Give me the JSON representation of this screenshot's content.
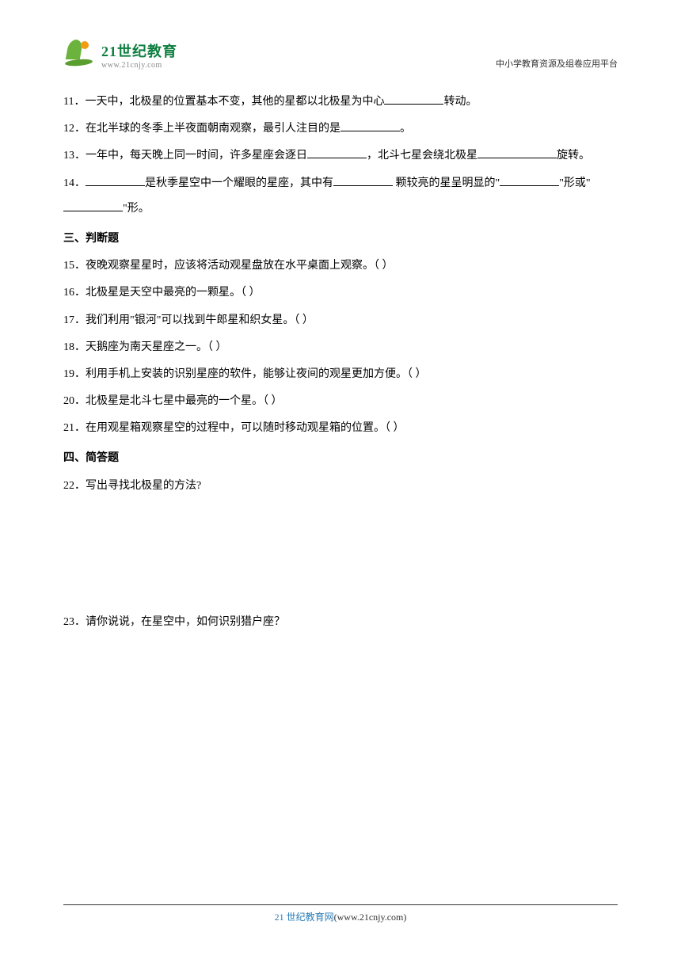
{
  "header": {
    "logo_cn": "21世纪教育",
    "logo_url": "www.21cnjy.com",
    "platform_text": "中小学教育资源及组卷应用平台"
  },
  "questions": {
    "q11": {
      "num": "11．",
      "part1": "一天中，北极星的位置基本不变，其他的星都以北极星为中心",
      "part2": "转动。"
    },
    "q12": {
      "num": "12．",
      "part1": "在北半球的冬季上半夜面朝南观察，最引人注目的是",
      "part2": "。"
    },
    "q13": {
      "num": "13．",
      "part1": "一年中，每天晚上同一时间，许多星座会逐日",
      "part2": "，北斗七星会绕北极星",
      "part3": "旋转。"
    },
    "q14": {
      "num": "14．",
      "part1": "是秋季星空中一个耀眼的星座，其中有",
      "part2": " 颗较亮的星呈明显的\"",
      "part3": "\"形或\"",
      "part4": "\"形。"
    }
  },
  "section3": {
    "title": "三、判断题",
    "q15": "15．夜晚观察星星时，应该将活动观星盘放在水平桌面上观察。（       ）",
    "q16": "16．北极星是天空中最亮的一颗星。（       ）",
    "q17": "17．我们利用\"银河\"可以找到牛郎星和织女星。（       ）",
    "q18": "18．天鹅座为南天星座之一。（       ）",
    "q19": "19．利用手机上安装的识别星座的软件，能够让夜间的观星更加方便。（       ）",
    "q20": "20．北极星是北斗七星中最亮的一个星。（       ）",
    "q21": "21．在用观星箱观察星空的过程中，可以随时移动观星箱的位置。（       ）"
  },
  "section4": {
    "title": "四、简答题",
    "q22": "22．写出寻找北极星的方法?",
    "q23": "23．请你说说，在星空中，如何识别猎户座？"
  },
  "footer": {
    "cn": "21 世纪教育网",
    "url": "(www.21cnjy.com)"
  }
}
